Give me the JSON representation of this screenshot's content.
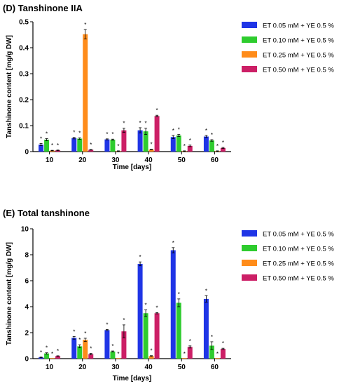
{
  "chart_data": [
    {
      "type": "bar",
      "title": "(D) Tanshinone IIA",
      "xlabel": "Time [days]",
      "ylabel": "Tanshinone content [mg/g DW]",
      "categories": [
        "10",
        "20",
        "30",
        "40",
        "50",
        "60"
      ],
      "ylim": [
        0,
        0.5
      ],
      "yticks": [
        "0",
        "0.1",
        "0.2",
        "0.3",
        "0.4",
        "0.5"
      ],
      "legend_position": "top-right",
      "grid": false,
      "significance_marker": "*",
      "series": [
        {
          "name": "ET 0.05 mM + YE 0.5 %",
          "color": "#1f35e6",
          "values": [
            0.027,
            0.052,
            0.047,
            0.082,
            0.056,
            0.058
          ],
          "errors": [
            0.004,
            0.003,
            0.002,
            0.01,
            0.006,
            0.004
          ]
        },
        {
          "name": "ET 0.10 mM + YE 0.5 %",
          "color": "#2ecc2e",
          "values": [
            0.046,
            0.05,
            0.046,
            0.078,
            0.062,
            0.043
          ],
          "errors": [
            0.004,
            0.003,
            0.002,
            0.012,
            0.004,
            0.003
          ]
        },
        {
          "name": "ET 0.25 mM + YE 0.5 %",
          "color": "#ff8c1a",
          "values": [
            0.004,
            0.452,
            0.002,
            0.008,
            0.002,
            0.002
          ],
          "errors": [
            0.001,
            0.018,
            0.001,
            0.001,
            0.001,
            0.001
          ]
        },
        {
          "name": "ET 0.50 mM + YE 0.5 %",
          "color": "#cc1f66",
          "values": [
            0.005,
            0.007,
            0.082,
            0.137,
            0.022,
            0.014
          ],
          "errors": [
            0.001,
            0.001,
            0.008,
            0.003,
            0.003,
            0.002
          ]
        }
      ]
    },
    {
      "type": "bar",
      "title": "(E) Total tanshinone",
      "xlabel": "Time [days]",
      "ylabel": "Tanshinone content [mg/g DW]",
      "categories": [
        "10",
        "20",
        "30",
        "40",
        "50",
        "60"
      ],
      "ylim": [
        0,
        10
      ],
      "yticks": [
        "0",
        "2",
        "4",
        "6",
        "8",
        "10"
      ],
      "legend_position": "top-right",
      "grid": false,
      "significance_marker": "*",
      "series": [
        {
          "name": "ET 0.05 mM + YE 0.5 %",
          "color": "#1f35e6",
          "values": [
            0.1,
            1.6,
            2.2,
            7.3,
            8.35,
            4.6
          ],
          "errors": [
            0.02,
            0.1,
            0.05,
            0.15,
            0.2,
            0.25
          ]
        },
        {
          "name": "ET 0.10 mM + YE 0.5 %",
          "color": "#2ecc2e",
          "values": [
            0.4,
            0.95,
            0.55,
            3.5,
            4.3,
            1.0
          ],
          "errors": [
            0.05,
            0.12,
            0.04,
            0.25,
            0.3,
            0.3
          ]
        },
        {
          "name": "ET 0.25 mM + YE 0.5 %",
          "color": "#ff8c1a",
          "values": [
            0.0,
            1.45,
            0.0,
            0.2,
            0.0,
            0.0
          ],
          "errors": [
            0.0,
            0.12,
            0.0,
            0.03,
            0.0,
            0.0
          ]
        },
        {
          "name": "ET 0.50 mM + YE 0.5 %",
          "color": "#cc1f66",
          "values": [
            0.2,
            0.35,
            2.1,
            3.5,
            0.9,
            0.75
          ],
          "errors": [
            0.02,
            0.05,
            0.5,
            0.05,
            0.08,
            0.05
          ]
        }
      ]
    }
  ]
}
